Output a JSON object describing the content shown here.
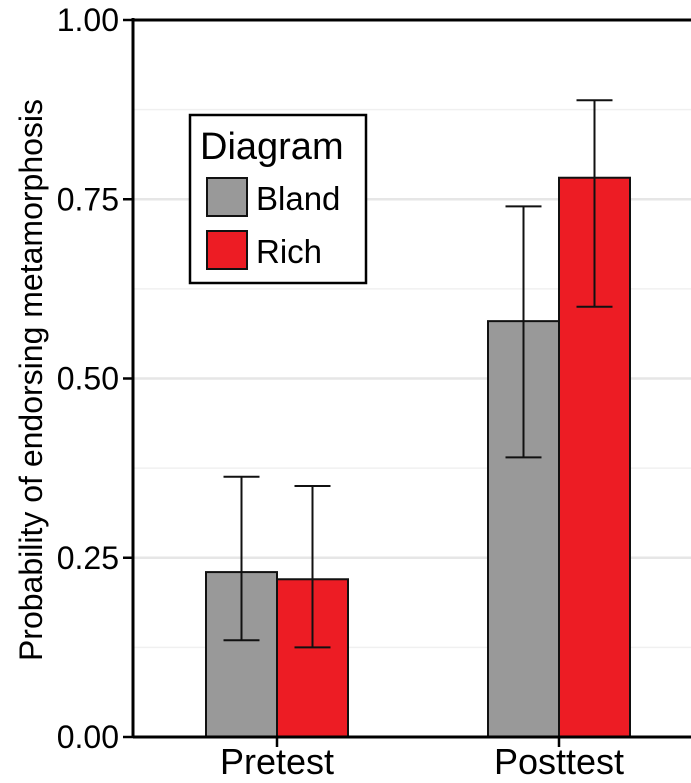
{
  "chart_data": {
    "type": "bar",
    "title": "",
    "xlabel": "",
    "ylabel": "Probability of endorsing metamorphosis",
    "ylim": [
      0,
      1
    ],
    "yticks": [
      "0.00",
      "0.25",
      "0.50",
      "0.75",
      "1.00"
    ],
    "grid": true,
    "legend": {
      "title": "Diagram",
      "placement": "top-left"
    },
    "categories": [
      "Pretest",
      "Posttest"
    ],
    "series": [
      {
        "name": "Bland",
        "color": "#999999",
        "values": [
          0.23,
          0.58
        ],
        "lower": [
          0.135,
          0.39
        ],
        "upper": [
          0.363,
          0.74
        ]
      },
      {
        "name": "Rich",
        "color": "#ed1c24",
        "values": [
          0.22,
          0.78
        ],
        "lower": [
          0.125,
          0.6
        ],
        "upper": [
          0.35,
          0.888
        ]
      }
    ]
  }
}
